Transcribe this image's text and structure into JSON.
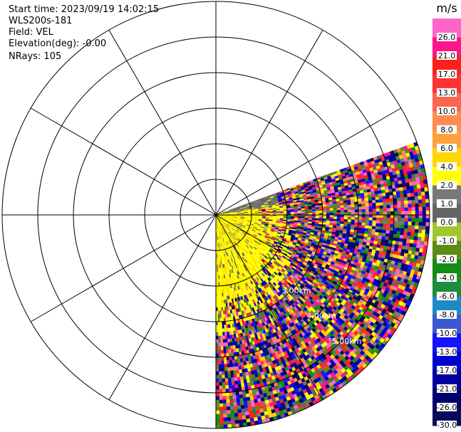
{
  "info": {
    "start_time": "Start time: 2023/09/19 14:02:15",
    "instrument": "WLS200s-181",
    "field": "Field: VEL",
    "elevation": "Elevation(deg): -0.00",
    "nrays": "NRays: 105"
  },
  "chart_data": {
    "type": "heatmap",
    "projection": "polar",
    "field": "VEL",
    "units": "m/s",
    "azimuth_range_deg": [
      70,
      180
    ],
    "rings_km": [
      1,
      2,
      3,
      4,
      5,
      6
    ],
    "ring_labels": [
      "3.00km",
      "4.00km",
      "5.00km"
    ],
    "spokes_deg": [
      0,
      30,
      60,
      90,
      120,
      150,
      180,
      210,
      240,
      270,
      300,
      330
    ],
    "colorbar": {
      "title": "m/s",
      "levels": [
        -30.0,
        -26.0,
        -21.0,
        -17.0,
        -13.0,
        -10.0,
        -8.0,
        -6.0,
        -4.0,
        -2.0,
        -1.0,
        0.0,
        1.0,
        2.0,
        4.0,
        6.0,
        8.0,
        10.0,
        13.0,
        17.0,
        21.0,
        26.0
      ],
      "tick_labels": [
        "-30.0",
        "-26.0",
        "-21.0",
        "-17.0",
        "-13.0",
        "-10.0",
        "-8.0",
        "-6.0",
        "-4.0",
        "-2.0",
        "-1.0",
        "0.0",
        "1.0",
        "2.0",
        "4.0",
        "6.0",
        "8.0",
        "10.0",
        "13.0",
        "17.0",
        "21.0",
        "26.0"
      ],
      "colors": [
        "#0a0a5a",
        "#00006e",
        "#0000a0",
        "#0000d2",
        "#1414ff",
        "#3a5ad2",
        "#1e88c8",
        "#1e8c3c",
        "#148c14",
        "#5a8c14",
        "#a0c82d",
        "#646464",
        "#787878",
        "#ffff00",
        "#ffd700",
        "#ffa03c",
        "#ff8c50",
        "#ff6450",
        "#ff3232",
        "#ff1e1e",
        "#ff148c",
        "#ff64c8"
      ]
    }
  }
}
